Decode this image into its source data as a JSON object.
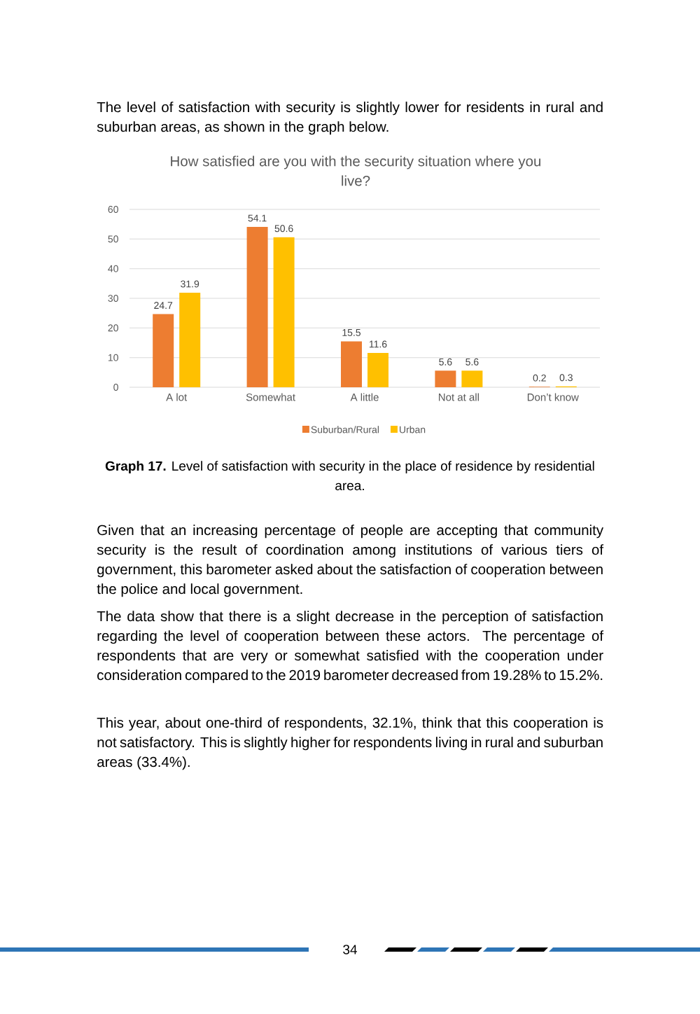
{
  "chart_data": {
    "type": "bar",
    "title": "How satisfied are you with the security situation where you live?",
    "categories": [
      "A lot",
      "Somewhat",
      "A little",
      "Not at all",
      "Don’t know"
    ],
    "series": [
      {
        "name": "Suburban/Rural",
        "color": "#ed7d31",
        "values": [
          24.7,
          54.1,
          15.5,
          5.6,
          0.2
        ]
      },
      {
        "name": "Urban",
        "color": "#ffc000",
        "values": [
          31.9,
          50.6,
          11.6,
          5.6,
          0.3
        ]
      }
    ],
    "ylim": [
      0,
      60
    ],
    "yticks": [
      0,
      10,
      20,
      30,
      40,
      50,
      60
    ],
    "grid": "y",
    "legend": "bottom",
    "data_labels": true,
    "annotations": [
      "The level of satisfaction with security is slightly lower for residents in rural and suburban areas, as shown in the graph below.",
      "**Graph 17.** Level of satisfaction with security in the place of residence by residential area.",
      "Given that an increasing percentage of people are accepting that community security is the result of coordination among institutions of various tiers of government, this barometer asked about the satisfaction of cooperation between the police and local government.",
      "The data show that there is a slight decrease in the perception of satisfaction regarding the level of cooperation between these actors. The percentage of respondents that are very or somewhat satisfied with the cooperation under consideration compared to the 2019 barometer decreased from 19.28% to 15.2%.",
      "This year, about one-third of respondents, 32.1%, think that this cooperation is not satisfactory. This is slightly higher for respondents living in rural and suburban areas (33.4%).",
      "34"
    ]
  }
}
